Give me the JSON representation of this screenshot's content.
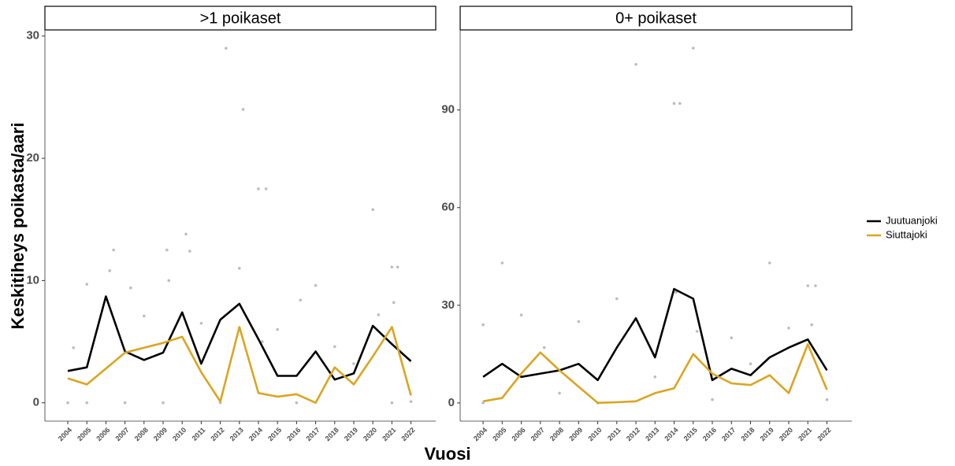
{
  "axis_labels": {
    "x": "Vuosi",
    "y": "Keskitiheys poikasta/aari"
  },
  "chart_data": [
    {
      "type": "line",
      "title": ">1 poikaset",
      "x": [
        2004,
        2005,
        2006,
        2007,
        2008,
        2009,
        2010,
        2011,
        2012,
        2013,
        2014,
        2015,
        2016,
        2017,
        2018,
        2019,
        2020,
        2021,
        2022
      ],
      "series": [
        {
          "name": "Juutuanjoki",
          "color": "#000000",
          "values": [
            2.6,
            2.9,
            8.7,
            4.2,
            3.5,
            4.1,
            7.4,
            3.2,
            6.8,
            8.1,
            5.2,
            2.2,
            2.2,
            4.2,
            1.9,
            2.4,
            6.3,
            4.8,
            3.4
          ]
        },
        {
          "name": "Siuttajoki",
          "color": "#daa520",
          "values": [
            2.0,
            1.5,
            2.8,
            4.1,
            4.5,
            4.9,
            5.4,
            2.5,
            0.1,
            6.2,
            0.8,
            0.5,
            0.7,
            0.0,
            2.9,
            1.5,
            3.8,
            6.2,
            0.6
          ]
        }
      ],
      "points": {
        "color": "#bdbdbd",
        "x": [
          2012.3,
          2013.2,
          2014,
          2014.4,
          2020,
          2010.2,
          2009.2,
          2006.4,
          2021,
          2021.3,
          2010.4,
          2005,
          2017,
          2016.2,
          2009.3,
          2004,
          2005,
          2007,
          2009,
          2012,
          2016,
          2021,
          2022,
          2013,
          2006.2,
          2008,
          2011,
          2015,
          2018,
          2019,
          2020.3,
          2004.3,
          2007.3,
          2014.2,
          2021.1
        ],
        "y": [
          29,
          24,
          17.5,
          17.5,
          15.8,
          13.8,
          12.5,
          12.5,
          11.1,
          11.1,
          12.4,
          9.7,
          9.6,
          8.4,
          10,
          0,
          0,
          0,
          0,
          0,
          0,
          0,
          0.1,
          11,
          10.8,
          7.1,
          6.5,
          6,
          4.6,
          3.2,
          7.2,
          4.5,
          9.4,
          5,
          8.2
        ]
      },
      "xlim": [
        2002.8,
        2023.3
      ],
      "ylim": [
        -1.5,
        30.5
      ],
      "xticks": [
        2004,
        2005,
        2006,
        2007,
        2008,
        2009,
        2010,
        2011,
        2012,
        2013,
        2014,
        2015,
        2016,
        2017,
        2018,
        2019,
        2020,
        2021,
        2022
      ],
      "yticks": [
        0,
        10,
        20,
        30
      ]
    },
    {
      "type": "line",
      "title": "0+ poikaset",
      "x": [
        2004,
        2005,
        2006,
        2007,
        2008,
        2009,
        2010,
        2011,
        2012,
        2013,
        2014,
        2015,
        2016,
        2017,
        2018,
        2019,
        2020,
        2021,
        2022
      ],
      "series": [
        {
          "name": "Juutuanjoki",
          "color": "#000000",
          "values": [
            8,
            12,
            8,
            9,
            10,
            12,
            7,
            17,
            26,
            14,
            35,
            32,
            7,
            10.5,
            8.5,
            14,
            17,
            19.5,
            10
          ]
        },
        {
          "name": "Siuttajoki",
          "color": "#daa520",
          "values": [
            0.5,
            1.5,
            9,
            15.5,
            10,
            5,
            0,
            0.2,
            0.5,
            3,
            4.5,
            15,
            9,
            6,
            5.5,
            8.5,
            3,
            18,
            4
          ]
        }
      ],
      "points": {
        "color": "#bdbdbd",
        "x": [
          2012,
          2015,
          2014,
          2014.3,
          2005,
          2019,
          2021,
          2021.4,
          2011,
          2006,
          2004,
          2009,
          2014.1,
          2020,
          2004,
          2010,
          2022,
          2016,
          2013,
          2007.2,
          2008,
          2017,
          2018,
          2021.2,
          2015.2
        ],
        "y": [
          104,
          109,
          92,
          92,
          43,
          43,
          36,
          36,
          32,
          27,
          24,
          25,
          34,
          23,
          0,
          0,
          1,
          1,
          8,
          17,
          3,
          20,
          12,
          24,
          22
        ]
      },
      "xlim": [
        2002.8,
        2023.3
      ],
      "ylim": [
        -5.6,
        114.6
      ],
      "xticks": [
        2004,
        2005,
        2006,
        2007,
        2008,
        2009,
        2010,
        2011,
        2012,
        2013,
        2014,
        2015,
        2016,
        2017,
        2018,
        2019,
        2020,
        2021,
        2022
      ],
      "yticks": [
        0,
        30,
        60,
        90
      ]
    }
  ]
}
